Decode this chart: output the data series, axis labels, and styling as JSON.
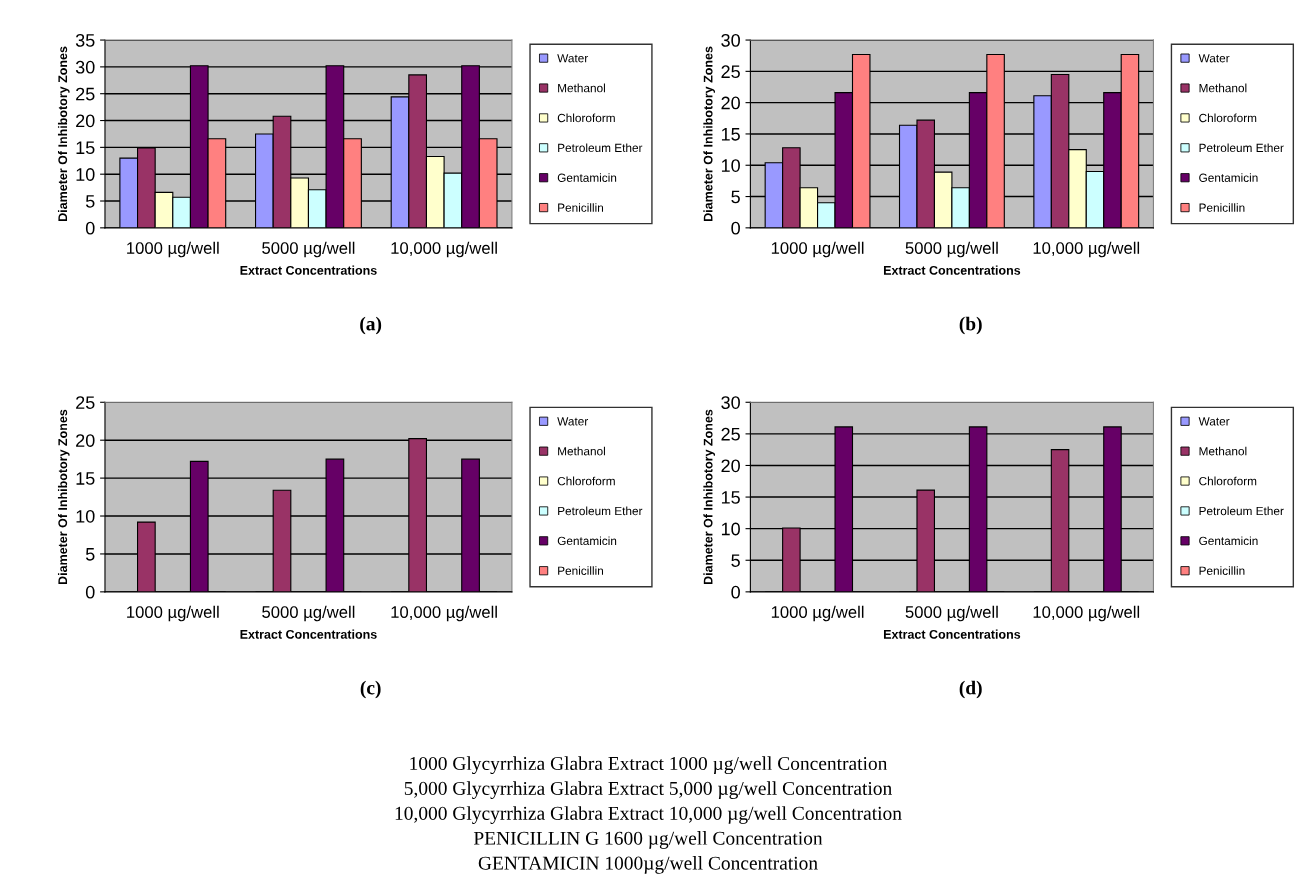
{
  "chart_data": [
    {
      "type": "bar",
      "xlabel": "Extract Concentrations",
      "ylabel": "Diameter Of Inhibotory Zones",
      "categories": [
        "1000 µg/well",
        "5000 µg/well",
        "10,000 µg/well"
      ],
      "ylim": [
        0,
        35
      ],
      "yticks": [
        0,
        5,
        10,
        15,
        20,
        25,
        30,
        35
      ],
      "grid": "y",
      "legend": "right",
      "annotations": [
        "(a)"
      ],
      "series": [
        {
          "name": "Water",
          "color": "#9999ff",
          "values": [
            13,
            17.5,
            24.4
          ]
        },
        {
          "name": "Methanol",
          "color": "#993366",
          "values": [
            14.9,
            20.8,
            28.5
          ]
        },
        {
          "name": "Chloroform",
          "color": "#ffffcc",
          "values": [
            6.6,
            9.3,
            13.3
          ]
        },
        {
          "name": "Petroleum Ether",
          "color": "#ccffff",
          "values": [
            5.7,
            7.1,
            10.2
          ]
        },
        {
          "name": "Gentamicin",
          "color": "#660066",
          "values": [
            30.2,
            30.2,
            30.2
          ]
        },
        {
          "name": "Penicillin",
          "color": "#ff8080",
          "values": [
            16.6,
            16.6,
            16.6
          ]
        }
      ]
    },
    {
      "type": "bar",
      "xlabel": "Extract Concentrations",
      "ylabel": "Diameter Of Inhibotory Zones",
      "categories": [
        "1000 µg/well",
        "5000 µg/well",
        "10,000 µg/well"
      ],
      "ylim": [
        0,
        30
      ],
      "yticks": [
        0,
        5,
        10,
        15,
        20,
        25,
        30
      ],
      "grid": "y",
      "legend": "right",
      "annotations": [
        "(b)"
      ],
      "series": [
        {
          "name": "Water",
          "color": "#9999ff",
          "values": [
            10.4,
            16.4,
            21.1
          ]
        },
        {
          "name": "Methanol",
          "color": "#993366",
          "values": [
            12.8,
            17.2,
            24.5
          ]
        },
        {
          "name": "Chloroform",
          "color": "#ffffcc",
          "values": [
            6.4,
            8.9,
            12.5
          ]
        },
        {
          "name": "Petroleum Ether",
          "color": "#ccffff",
          "values": [
            4.0,
            6.4,
            9.0
          ]
        },
        {
          "name": "Gentamicin",
          "color": "#660066",
          "values": [
            21.6,
            21.6,
            21.6
          ]
        },
        {
          "name": "Penicillin",
          "color": "#ff8080",
          "values": [
            27.7,
            27.7,
            27.7
          ]
        }
      ]
    },
    {
      "type": "bar",
      "xlabel": "Extract Concentrations",
      "ylabel": "Diameter Of Inhibotory Zones",
      "categories": [
        "1000 µg/well",
        "5000 µg/well",
        "10,000 µg/well"
      ],
      "ylim": [
        0,
        25
      ],
      "yticks": [
        0,
        5,
        10,
        15,
        20,
        25
      ],
      "grid": "y",
      "legend": "right",
      "annotations": [
        "(c)"
      ],
      "series": [
        {
          "name": "Water",
          "color": "#9999ff",
          "values": [
            0,
            0,
            0
          ]
        },
        {
          "name": "Methanol",
          "color": "#993366",
          "values": [
            9.2,
            13.4,
            20.2
          ]
        },
        {
          "name": "Chloroform",
          "color": "#ffffcc",
          "values": [
            0,
            0,
            0
          ]
        },
        {
          "name": "Petroleum Ether",
          "color": "#ccffff",
          "values": [
            0,
            0,
            0
          ]
        },
        {
          "name": "Gentamicin",
          "color": "#660066",
          "values": [
            17.2,
            17.5,
            17.5
          ]
        },
        {
          "name": "Penicillin",
          "color": "#ff8080",
          "values": [
            0,
            0,
            0
          ]
        }
      ]
    },
    {
      "type": "bar",
      "xlabel": "Extract Concentrations",
      "ylabel": "Diameter Of Inhibotory Zones",
      "categories": [
        "1000 µg/well",
        "5000 µg/well",
        "10,000 µg/well"
      ],
      "ylim": [
        0,
        30
      ],
      "yticks": [
        0,
        5,
        10,
        15,
        20,
        25,
        30
      ],
      "grid": "y",
      "legend": "right",
      "annotations": [
        "(d)",
        "1000 Glycyrrhiza Glabra Extract 1000 µg/well Concentration",
        "5,000 Glycyrrhiza Glabra Extract 5,000 µg/well Concentration",
        "10,000 Glycyrrhiza Glabra Extract 10,000 µg/well Concentration",
        "PENICILLIN G 1600 µg/well Concentration",
        "GENTAMICIN 1000µg/well Concentration"
      ],
      "series": [
        {
          "name": "Water",
          "color": "#9999ff",
          "values": [
            0,
            0,
            0
          ]
        },
        {
          "name": "Methanol",
          "color": "#993366",
          "values": [
            10.1,
            16.1,
            22.5
          ]
        },
        {
          "name": "Chloroform",
          "color": "#ffffcc",
          "values": [
            0,
            0,
            0
          ]
        },
        {
          "name": "Petroleum Ether",
          "color": "#ccffff",
          "values": [
            0,
            0,
            0
          ]
        },
        {
          "name": "Gentamicin",
          "color": "#660066",
          "values": [
            26.1,
            26.1,
            26.1
          ]
        },
        {
          "name": "Penicillin",
          "color": "#ff8080",
          "values": [
            0,
            0,
            0
          ]
        }
      ]
    }
  ]
}
